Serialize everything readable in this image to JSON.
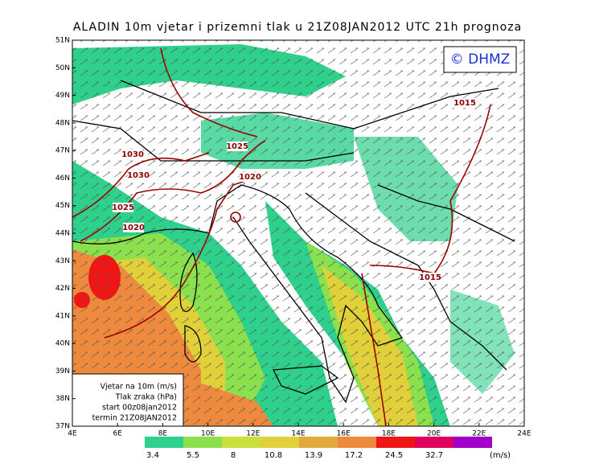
{
  "header": {
    "title": "ALADIN 10m vjetar i prizemni tlak u 21Z08JAN2012 UTC 21h prognoza",
    "copyright": "© DHMZ"
  },
  "axes": {
    "latitudes": [
      "51N",
      "50N",
      "49N",
      "48N",
      "47N",
      "46N",
      "45N",
      "44N",
      "43N",
      "42N",
      "41N",
      "40N",
      "39N",
      "38N",
      "37N"
    ],
    "longitudes": [
      "4E",
      "6E",
      "8E",
      "10E",
      "12E",
      "14E",
      "16E",
      "18E",
      "20E",
      "22E",
      "24E"
    ]
  },
  "isobars": [
    "1030",
    "1030",
    "1025",
    "1020",
    "1025",
    "1020",
    "1015",
    "1015"
  ],
  "info": [
    "Vjetar na 10m (m/s)",
    "Tlak zraka (hPa)",
    "start 00z08jan2012",
    "termin 21Z08JAN2012"
  ],
  "legend": {
    "labels": [
      "3.4",
      "5.5",
      "8",
      "10.8",
      "13.9",
      "17.2",
      "24.5",
      "32.7"
    ],
    "unit": "(m/s)"
  }
}
